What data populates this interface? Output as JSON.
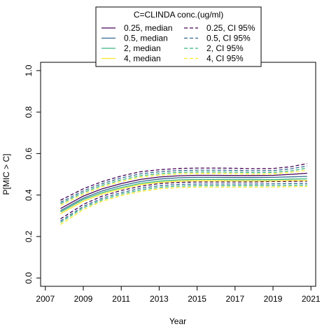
{
  "chart_data": {
    "type": "line",
    "title": "",
    "xlabel": "Year",
    "ylabel": "P[MIC > C]",
    "xlim": [
      2007,
      2021
    ],
    "ylim": [
      0.0,
      1.0
    ],
    "x_ticks": [
      "2007",
      "2009",
      "2011",
      "2013",
      "2015",
      "2017",
      "2019",
      "2021"
    ],
    "y_ticks": [
      "0.0",
      "0.2",
      "0.4",
      "0.6",
      "0.8",
      "1.0"
    ],
    "grid": false,
    "legend": {
      "title": "C=CLINDA conc.(ug/ml)",
      "placement": "top-center",
      "entries": [
        "0.25, median",
        "0.5, median",
        "2, median",
        "4, median",
        "0.25, CI 95%",
        "0.5, CI 95%",
        "2, CI 95%",
        "4, CI 95%"
      ]
    },
    "colors": {
      "0.25": "#440154",
      "0.5": "#31688e",
      "2": "#35b779",
      "4": "#fde725"
    },
    "x": [
      2007.8,
      2009,
      2010,
      2011,
      2012,
      2013,
      2014,
      2015,
      2016,
      2017,
      2018,
      2019,
      2020,
      2020.8
    ],
    "series": [
      {
        "name": "0.25, median",
        "conc": "0.25",
        "stat": "median",
        "values": [
          0.335,
          0.395,
          0.43,
          0.455,
          0.475,
          0.487,
          0.493,
          0.495,
          0.495,
          0.494,
          0.494,
          0.495,
          0.5,
          0.505
        ]
      },
      {
        "name": "0.5, median",
        "conc": "0.5",
        "stat": "median",
        "values": [
          0.325,
          0.385,
          0.42,
          0.445,
          0.465,
          0.477,
          0.483,
          0.485,
          0.485,
          0.484,
          0.484,
          0.485,
          0.488,
          0.49
        ]
      },
      {
        "name": "2, median",
        "conc": "2",
        "stat": "median",
        "values": [
          0.318,
          0.378,
          0.412,
          0.436,
          0.456,
          0.467,
          0.473,
          0.475,
          0.475,
          0.474,
          0.474,
          0.474,
          0.477,
          0.478
        ]
      },
      {
        "name": "4, median",
        "conc": "4",
        "stat": "median",
        "values": [
          0.31,
          0.37,
          0.405,
          0.43,
          0.45,
          0.461,
          0.467,
          0.469,
          0.469,
          0.468,
          0.468,
          0.468,
          0.47,
          0.47
        ]
      },
      {
        "name": "0.25, CI 95%",
        "conc": "0.25",
        "stat": "ci_upper",
        "values": [
          0.375,
          0.43,
          0.465,
          0.492,
          0.512,
          0.522,
          0.528,
          0.53,
          0.53,
          0.529,
          0.527,
          0.528,
          0.537,
          0.552
        ]
      },
      {
        "name": "0.25, CI 95%",
        "conc": "0.25",
        "stat": "ci_lower",
        "values": [
          0.285,
          0.355,
          0.395,
          0.422,
          0.442,
          0.455,
          0.461,
          0.463,
          0.463,
          0.463,
          0.463,
          0.465,
          0.466,
          0.467
        ]
      },
      {
        "name": "0.5, CI 95%",
        "conc": "0.5",
        "stat": "ci_upper",
        "values": [
          0.365,
          0.42,
          0.455,
          0.482,
          0.502,
          0.512,
          0.518,
          0.52,
          0.52,
          0.519,
          0.517,
          0.518,
          0.527,
          0.54
        ]
      },
      {
        "name": "0.5, CI 95%",
        "conc": "0.5",
        "stat": "ci_lower",
        "values": [
          0.275,
          0.345,
          0.385,
          0.412,
          0.432,
          0.445,
          0.451,
          0.453,
          0.453,
          0.453,
          0.453,
          0.454,
          0.455,
          0.456
        ]
      },
      {
        "name": "2, CI 95%",
        "conc": "2",
        "stat": "ci_upper",
        "values": [
          0.358,
          0.412,
          0.447,
          0.473,
          0.493,
          0.503,
          0.509,
          0.511,
          0.511,
          0.51,
          0.508,
          0.509,
          0.517,
          0.53
        ]
      },
      {
        "name": "2, CI 95%",
        "conc": "2",
        "stat": "ci_lower",
        "values": [
          0.268,
          0.338,
          0.377,
          0.404,
          0.424,
          0.437,
          0.443,
          0.445,
          0.445,
          0.445,
          0.445,
          0.446,
          0.447,
          0.448
        ]
      },
      {
        "name": "4, CI 95%",
        "conc": "4",
        "stat": "ci_upper",
        "values": [
          0.35,
          0.404,
          0.44,
          0.466,
          0.486,
          0.496,
          0.502,
          0.504,
          0.504,
          0.503,
          0.501,
          0.502,
          0.51,
          0.52
        ]
      },
      {
        "name": "4, CI 95%",
        "conc": "4",
        "stat": "ci_lower",
        "values": [
          0.258,
          0.33,
          0.37,
          0.397,
          0.417,
          0.43,
          0.436,
          0.438,
          0.438,
          0.438,
          0.438,
          0.439,
          0.44,
          0.441
        ]
      }
    ]
  }
}
